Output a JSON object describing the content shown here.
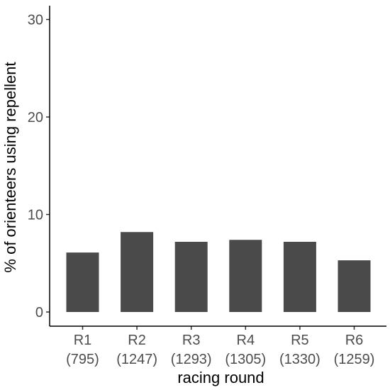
{
  "chart_data": {
    "type": "bar",
    "categories": [
      "R1",
      "R2",
      "R3",
      "R4",
      "R5",
      "R6"
    ],
    "category_sublabels": [
      "(795)",
      "(1247)",
      "(1293)",
      "(1305)",
      "(1330)",
      "(1259)"
    ],
    "values": [
      6.1,
      8.2,
      7.2,
      7.4,
      7.2,
      5.3
    ],
    "xlabel": "racing round",
    "ylabel": "% of orienteers using repellent",
    "ylim": [
      0,
      31
    ],
    "yticks": [
      0,
      10,
      20,
      30
    ],
    "grid": false,
    "bar_color": "#4a4a4a"
  }
}
